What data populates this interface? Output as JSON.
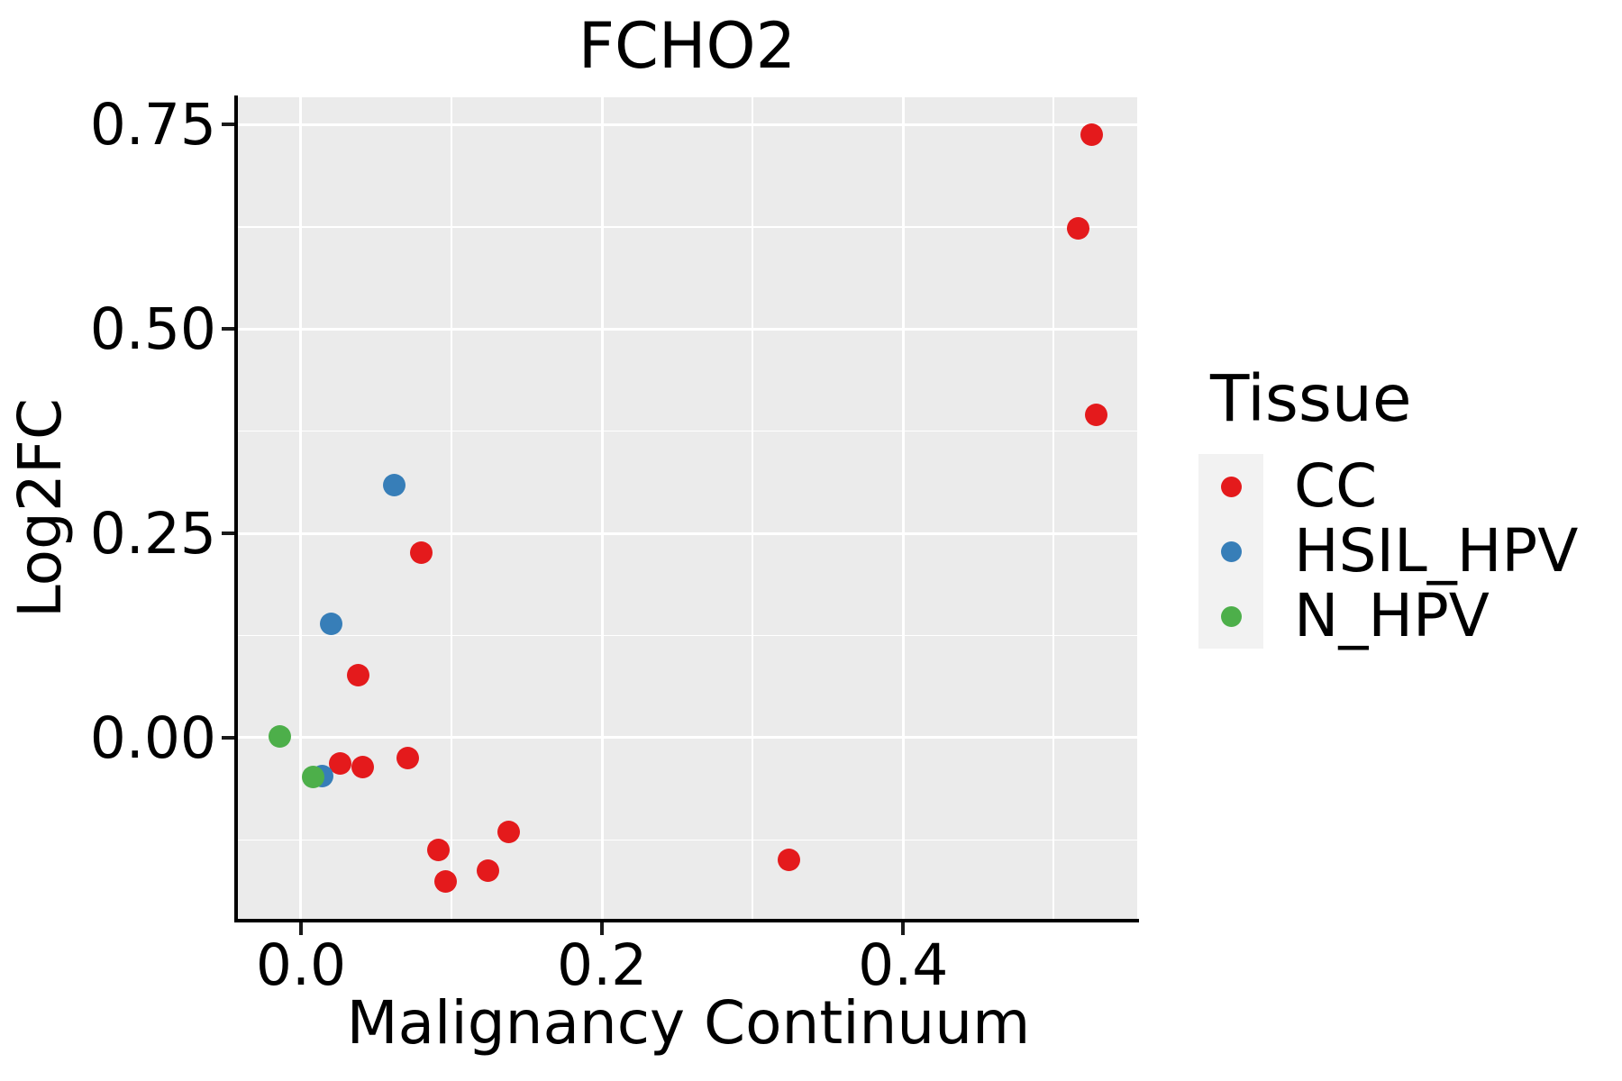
{
  "title": "FCHO2",
  "axes": {
    "x": {
      "label": "Malignancy Continuum",
      "ticks": [
        {
          "value": 0.0,
          "label": "0.0"
        },
        {
          "value": 0.2,
          "label": "0.2"
        },
        {
          "value": 0.4,
          "label": "0.4"
        }
      ],
      "minor_ticks": [
        0.1,
        0.3,
        0.5
      ],
      "range": [
        -0.0425,
        0.5555
      ]
    },
    "y": {
      "label": "Log2FC",
      "ticks": [
        {
          "value": 0.0,
          "label": "0.00"
        },
        {
          "value": 0.25,
          "label": "0.25"
        },
        {
          "value": 0.5,
          "label": "0.50"
        },
        {
          "value": 0.75,
          "label": "0.75"
        }
      ],
      "minor_ticks": [
        -0.125,
        0.125,
        0.375,
        0.625
      ],
      "range": [
        -0.2215,
        0.7835
      ]
    }
  },
  "legend": {
    "title": "Tissue",
    "items": [
      {
        "label": "CC",
        "color": "#E41A1C"
      },
      {
        "label": "HSIL_HPV",
        "color": "#377EB8"
      },
      {
        "label": "N_HPV",
        "color": "#4DAF4A"
      }
    ]
  },
  "colors": {
    "panel_background": "#EBEBEB",
    "gridline": "#FFFFFF",
    "axis_line": "#000000",
    "legend_key_background": "#F2F2F2",
    "cc_red": "#E41A1C",
    "hsil_hpv_blue": "#377EB8",
    "n_hpv_green": "#4DAF4A"
  },
  "chart_data": {
    "type": "scatter",
    "title": "FCHO2",
    "xlabel": "Malignancy Continuum",
    "ylabel": "Log2FC",
    "xlim": [
      -0.0425,
      0.5555
    ],
    "ylim": [
      -0.2215,
      0.7835
    ],
    "x_major_ticks": [
      0.0,
      0.2,
      0.4
    ],
    "y_major_ticks": [
      0.0,
      0.25,
      0.5,
      0.75
    ],
    "grid": "white major+minor gridlines on gray panel",
    "legend_title": "Tissue",
    "legend_position": "right",
    "marker": "filled circle, diameter ~25px",
    "series": [
      {
        "name": "CC",
        "color": "#E41A1C",
        "points": [
          [
            0.525,
            0.738
          ],
          [
            0.516,
            0.623
          ],
          [
            0.528,
            0.395
          ],
          [
            0.08,
            0.226
          ],
          [
            0.038,
            0.077
          ],
          [
            0.026,
            -0.031
          ],
          [
            0.041,
            -0.036
          ],
          [
            0.071,
            -0.025
          ],
          [
            0.138,
            -0.115
          ],
          [
            0.091,
            -0.137
          ],
          [
            0.124,
            -0.162
          ],
          [
            0.096,
            -0.176
          ],
          [
            0.324,
            -0.149
          ]
        ]
      },
      {
        "name": "HSIL_HPV",
        "color": "#377EB8",
        "points": [
          [
            0.062,
            0.309
          ],
          [
            0.02,
            0.139
          ],
          [
            0.014,
            -0.047
          ]
        ]
      },
      {
        "name": "N_HPV",
        "color": "#4DAF4A",
        "points": [
          [
            -0.014,
            0.002
          ],
          [
            0.008,
            -0.048
          ]
        ]
      }
    ]
  }
}
